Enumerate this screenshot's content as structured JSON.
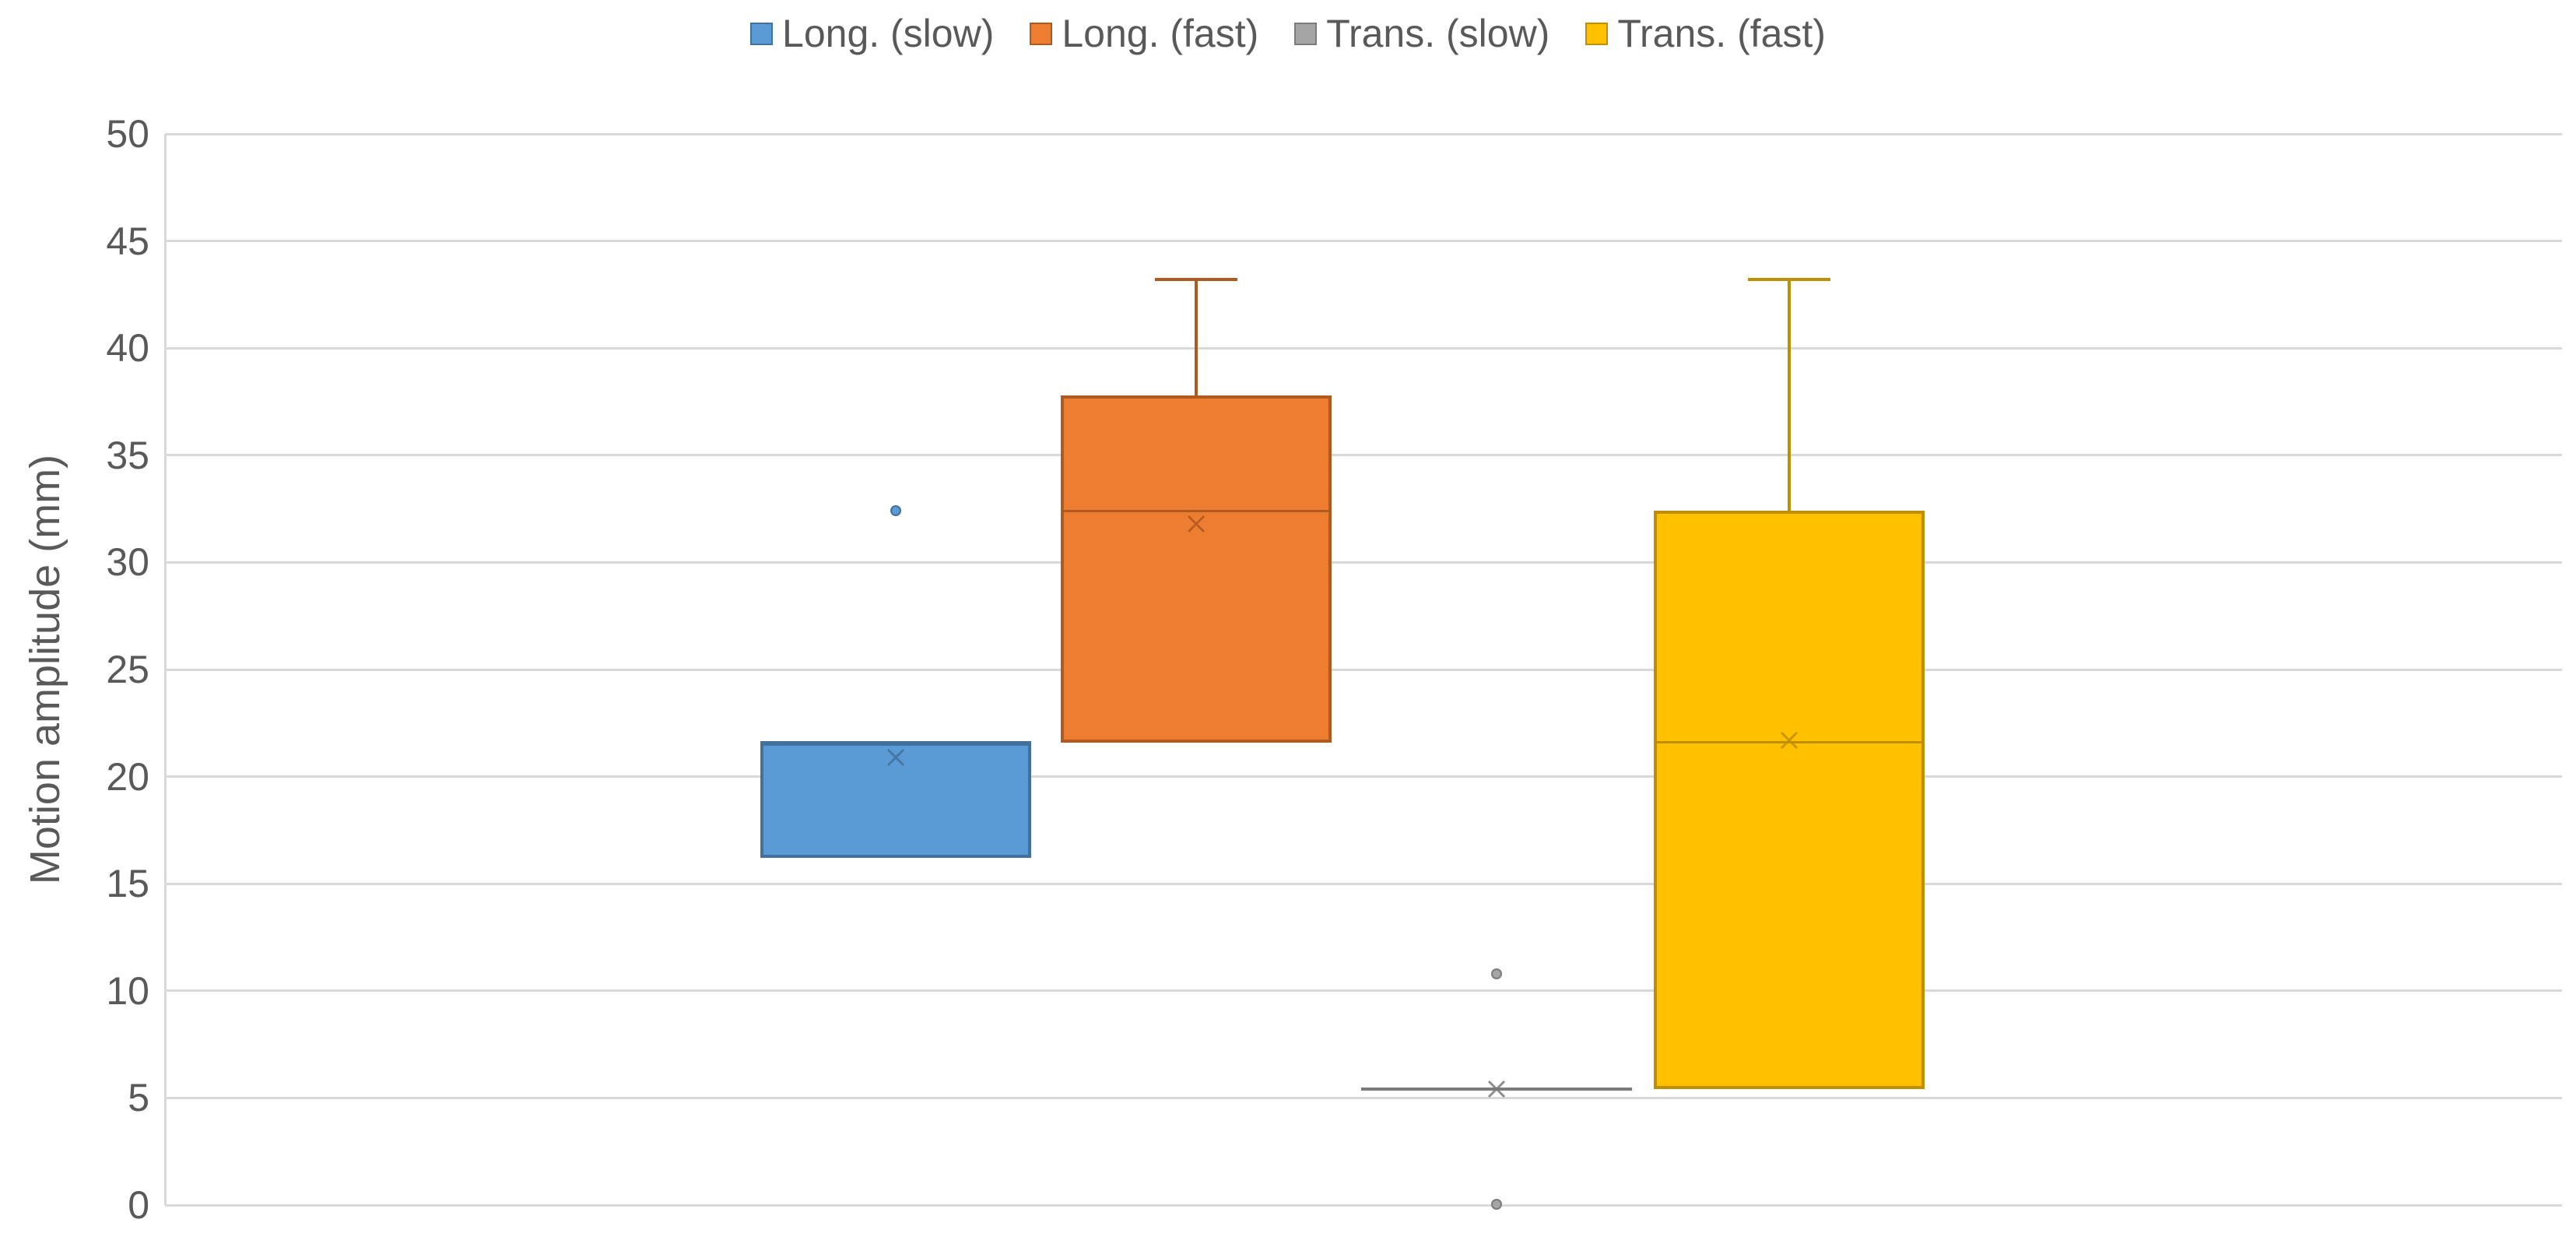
{
  "colors": {
    "background": "#FFFFFF",
    "text": "#595959",
    "gridline": "#D9D9D9"
  },
  "chart_data": {
    "type": "boxplot",
    "title": "",
    "ylabel": "Motion amplitude (mm)",
    "xlabel": "",
    "ylim": [
      0,
      50
    ],
    "ytick_interval": 5,
    "yticks": [
      0,
      5,
      10,
      15,
      20,
      25,
      30,
      35,
      40,
      45,
      50
    ],
    "grid": "horizontal",
    "legend_position": "top-center",
    "series": [
      {
        "name": "Long. (slow)",
        "fill": "#5B9BD5",
        "border": "#41719C",
        "q1": 16.2,
        "median": 21.6,
        "q3": 21.6,
        "whisker_low": null,
        "whisker_high": null,
        "mean": 20.9,
        "outliers": [
          32.4
        ]
      },
      {
        "name": "Long. (fast)",
        "fill": "#ED7D31",
        "border": "#AE5A21",
        "q1": 21.6,
        "median": 32.4,
        "q3": 37.8,
        "whisker_low": null,
        "whisker_high": 43.2,
        "mean": 31.8,
        "outliers": []
      },
      {
        "name": "Trans. (slow)",
        "fill": "#A5A5A5",
        "border": "#7B7B7B",
        "q1": 5.4,
        "median": 5.4,
        "q3": 5.4,
        "whisker_low": null,
        "whisker_high": null,
        "mean": 5.4,
        "outliers": [
          10.8,
          0.05
        ]
      },
      {
        "name": "Trans. (fast)",
        "fill": "#FFC000",
        "border": "#BF8F00",
        "q1": 5.4,
        "median": 21.6,
        "q3": 32.4,
        "whisker_low": null,
        "whisker_high": 43.2,
        "mean": 21.7,
        "outliers": []
      }
    ]
  }
}
